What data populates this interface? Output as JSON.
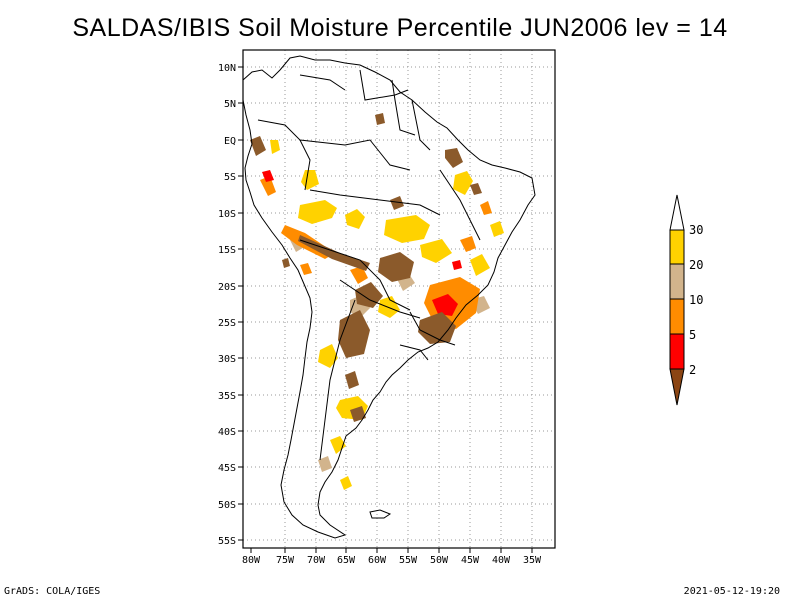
{
  "title": "SALDAS/IBIS Soil Moisture Percentile JUN2006 lev = 14",
  "map": {
    "lon_labels": [
      "80W",
      "75W",
      "70W",
      "65W",
      "60W",
      "55W",
      "50W",
      "45W",
      "40W",
      "35W"
    ],
    "lat_labels": [
      "10N",
      "5N",
      "EQ",
      "5S",
      "10S",
      "15S",
      "20S",
      "25S",
      "30S",
      "35S",
      "40S",
      "45S",
      "50S",
      "55S"
    ]
  },
  "legend": {
    "labels": [
      "30",
      "20",
      "10",
      "5",
      "2"
    ],
    "colors": {
      "above_30": "#ffffff",
      "20_30": "#ffd200",
      "10_20": "#d2b48c",
      "5_10": "#ff8c00",
      "2_5": "#ff0000",
      "below_2": "#8b4513"
    }
  },
  "footer": {
    "left": "GrADS: COLA/IGES",
    "right": "2021-05-12-19:20"
  }
}
